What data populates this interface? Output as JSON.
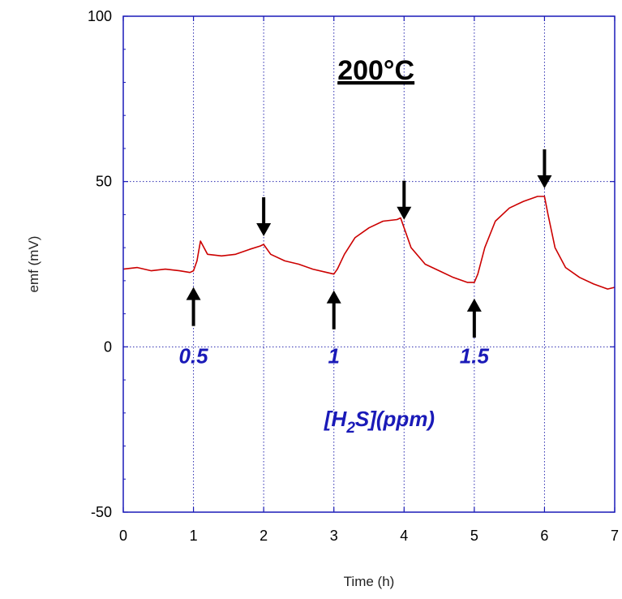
{
  "chart_data": {
    "type": "line",
    "title": "200°C",
    "xlabel": "Time (h)",
    "ylabel": "emf (mV)",
    "xlim": [
      0,
      7
    ],
    "ylim": [
      -50,
      100
    ],
    "x_ticks": [
      "0",
      "1",
      "2",
      "3",
      "4",
      "5",
      "6",
      "7"
    ],
    "y_ticks": [
      "100",
      "50",
      "0",
      "-50"
    ],
    "grid": true,
    "series": [
      {
        "color": "#cc0000",
        "points": [
          [
            0.0,
            23.5
          ],
          [
            0.2,
            24.0
          ],
          [
            0.4,
            23.0
          ],
          [
            0.6,
            23.5
          ],
          [
            0.8,
            23.0
          ],
          [
            0.95,
            22.5
          ],
          [
            1.0,
            23.0
          ],
          [
            1.05,
            26.0
          ],
          [
            1.1,
            32.0
          ],
          [
            1.2,
            28.0
          ],
          [
            1.4,
            27.5
          ],
          [
            1.6,
            28.0
          ],
          [
            1.8,
            29.5
          ],
          [
            1.95,
            30.5
          ],
          [
            2.0,
            31.0
          ],
          [
            2.1,
            28.0
          ],
          [
            2.3,
            26.0
          ],
          [
            2.5,
            25.0
          ],
          [
            2.7,
            23.5
          ],
          [
            2.9,
            22.5
          ],
          [
            3.0,
            22.0
          ],
          [
            3.05,
            23.5
          ],
          [
            3.15,
            28.0
          ],
          [
            3.3,
            33.0
          ],
          [
            3.5,
            36.0
          ],
          [
            3.7,
            38.0
          ],
          [
            3.9,
            38.5
          ],
          [
            3.95,
            39.0
          ],
          [
            4.0,
            36.0
          ],
          [
            4.1,
            30.0
          ],
          [
            4.3,
            25.0
          ],
          [
            4.5,
            23.0
          ],
          [
            4.7,
            21.0
          ],
          [
            4.9,
            19.5
          ],
          [
            5.0,
            19.5
          ],
          [
            5.05,
            22.0
          ],
          [
            5.15,
            30.0
          ],
          [
            5.3,
            38.0
          ],
          [
            5.5,
            42.0
          ],
          [
            5.7,
            44.0
          ],
          [
            5.9,
            45.5
          ],
          [
            6.0,
            45.5
          ],
          [
            6.05,
            40.0
          ],
          [
            6.15,
            30.0
          ],
          [
            6.3,
            24.0
          ],
          [
            6.5,
            21.0
          ],
          [
            6.7,
            19.0
          ],
          [
            6.9,
            17.5
          ],
          [
            7.0,
            18.0
          ]
        ]
      }
    ],
    "annotations": {
      "labels": [
        {
          "text": "0.5",
          "x": 1.0,
          "y": 0
        },
        {
          "text": "1",
          "x": 3.0,
          "y": 0
        },
        {
          "text": "1.5",
          "x": 5.0,
          "y": 0
        }
      ],
      "concentration_label": "[H2S](ppm)",
      "concentration_label_prefix": "[H",
      "concentration_label_sub": "2",
      "concentration_label_suffix": "S](ppm)",
      "label_color": "#1a1ab8",
      "up_arrows": [
        1.0,
        3.0,
        5.0
      ],
      "down_arrows": [
        2.0,
        4.0,
        6.0
      ]
    },
    "colors": {
      "frame": "#1a1ab8",
      "line": "#cc0000",
      "arrow": "#000000"
    }
  }
}
